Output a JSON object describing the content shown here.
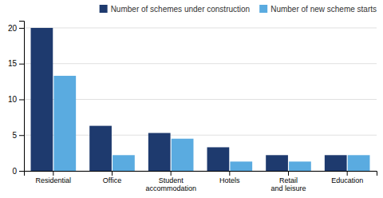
{
  "chart_data": {
    "type": "bar",
    "categories": [
      "Residential",
      "Office",
      "Student\naccommodation",
      "Hotels",
      "Retail\nand leisure",
      "Education"
    ],
    "series": [
      {
        "name": "Number of schemes under construction",
        "color": "#1e3a6e",
        "values": [
          20,
          6.3,
          5.3,
          3.3,
          2.2,
          2.2
        ]
      },
      {
        "name": "Number of new scheme starts",
        "color": "#5aabe0",
        "values": [
          13.3,
          2.2,
          4.5,
          1.3,
          1.3,
          2.2
        ]
      }
    ],
    "ylim": [
      0,
      21
    ],
    "yticks": [
      0,
      5,
      10,
      15,
      20
    ],
    "grid": true,
    "legend": "upper right"
  }
}
